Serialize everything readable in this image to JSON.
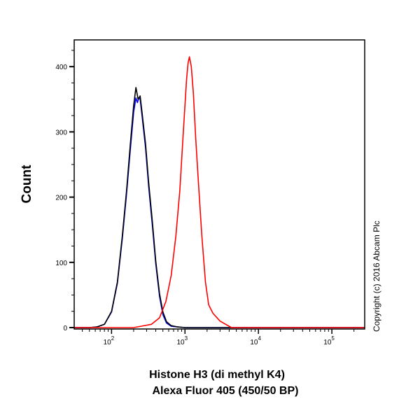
{
  "chart_data": {
    "type": "line",
    "title": "",
    "xlabel_lines": [
      "Histone H3 (di methyl K4)",
      "Alexa Fluor 405 (450/50 BP)"
    ],
    "ylabel": "Count",
    "xscale": "log",
    "xlim": [
      31,
      280000
    ],
    "ylim": [
      0,
      441
    ],
    "x_ticks": [
      {
        "value": 100,
        "base": "10",
        "exp": "2"
      },
      {
        "value": 1000,
        "base": "10",
        "exp": "3"
      },
      {
        "value": 10000,
        "base": "10",
        "exp": "4"
      },
      {
        "value": 100000,
        "base": "10",
        "exp": "5"
      }
    ],
    "y_ticks": [
      0,
      100,
      200,
      300,
      400
    ],
    "y_minor_step": 25,
    "grid": false,
    "legend": "none",
    "annotation": "Copyright (c) 2016 Abcam Plc",
    "series": [
      {
        "color": "#0000ff",
        "x": [
          31,
          50,
          63,
          80,
          100,
          120,
          140,
          160,
          180,
          200,
          215,
          225,
          235,
          245,
          260,
          290,
          320,
          360,
          400,
          450,
          500,
          560,
          650,
          800,
          1000,
          280000
        ],
        "y": [
          0,
          0,
          1,
          5,
          24,
          68,
          136,
          205,
          272,
          330,
          352,
          345,
          352,
          350,
          325,
          276,
          216,
          156,
          98,
          48,
          20,
          7,
          2,
          1,
          0,
          0
        ]
      },
      {
        "color": "#000000",
        "x": [
          31,
          50,
          63,
          80,
          100,
          120,
          140,
          160,
          180,
          200,
          215,
          230,
          245,
          260,
          290,
          320,
          360,
          400,
          450,
          500,
          560,
          650,
          800,
          1000,
          280000
        ],
        "y": [
          0,
          0,
          1,
          5,
          25,
          70,
          140,
          210,
          280,
          340,
          368,
          350,
          355,
          330,
          282,
          222,
          162,
          102,
          52,
          24,
          9,
          3,
          1,
          0,
          0
        ]
      },
      {
        "color": "#ff0000",
        "x": [
          31,
          200,
          250,
          350,
          450,
          550,
          650,
          750,
          850,
          950,
          1050,
          1100,
          1150,
          1220,
          1300,
          1400,
          1550,
          1700,
          1900,
          2100,
          2400,
          3000,
          4300,
          280000
        ],
        "y": [
          0,
          0,
          2,
          5,
          15,
          40,
          80,
          140,
          210,
          300,
          380,
          405,
          415,
          400,
          360,
          290,
          210,
          140,
          70,
          35,
          22,
          10,
          0,
          0
        ]
      }
    ]
  }
}
